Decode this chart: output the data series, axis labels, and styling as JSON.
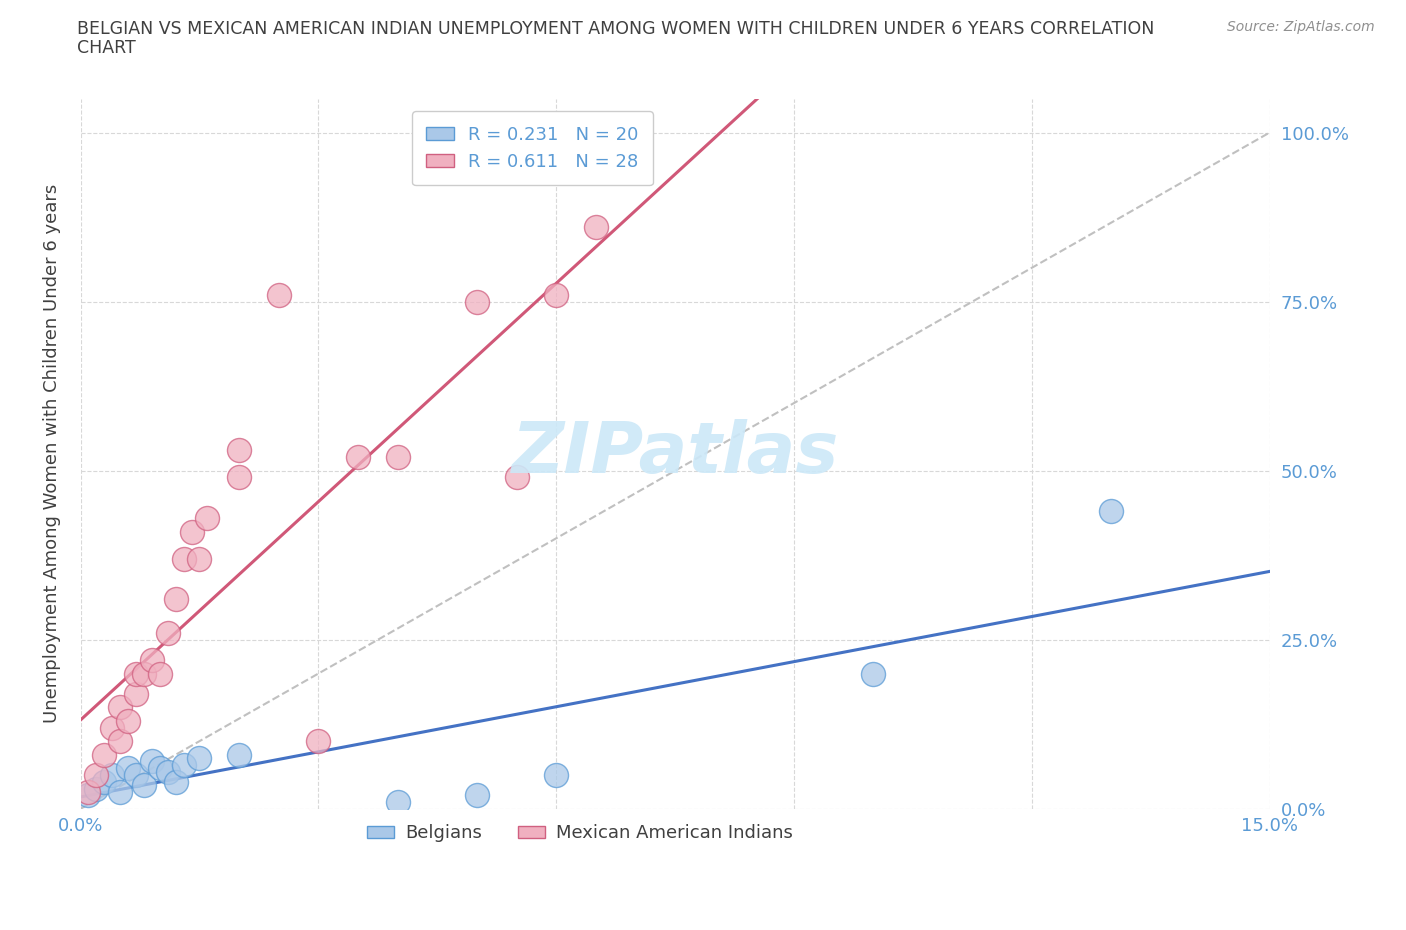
{
  "title_line1": "BELGIAN VS MEXICAN AMERICAN INDIAN UNEMPLOYMENT AMONG WOMEN WITH CHILDREN UNDER 6 YEARS CORRELATION",
  "title_line2": "CHART",
  "source": "Source: ZipAtlas.com",
  "ylabel": "Unemployment Among Women with Children Under 6 years",
  "xlim": [
    0.0,
    0.15
  ],
  "ylim": [
    0.0,
    1.05
  ],
  "belgian_face_color": "#aac8e8",
  "belgian_edge_color": "#5b9bd5",
  "mexican_face_color": "#f0b0c0",
  "mexican_edge_color": "#d06080",
  "belgian_line_color": "#4472c4",
  "mexican_line_color": "#d05878",
  "diagonal_color": "#c0c0c0",
  "watermark_color": "#cce8f8",
  "belgian_R": 0.231,
  "belgian_N": 20,
  "mexican_R": 0.611,
  "mexican_N": 28,
  "legend_belgian_label": "Belgians",
  "legend_mexican_label": "Mexican American Indians",
  "tick_color": "#5b9bd5",
  "label_color": "#404040",
  "grid_color": "#d8d8d8",
  "belgian_scatter_x": [
    0.001,
    0.002,
    0.003,
    0.004,
    0.005,
    0.006,
    0.007,
    0.008,
    0.009,
    0.01,
    0.011,
    0.012,
    0.013,
    0.015,
    0.02,
    0.04,
    0.05,
    0.06,
    0.1,
    0.13
  ],
  "belgian_scatter_y": [
    0.02,
    0.03,
    0.04,
    0.05,
    0.025,
    0.06,
    0.05,
    0.035,
    0.07,
    0.06,
    0.055,
    0.04,
    0.065,
    0.075,
    0.08,
    0.01,
    0.02,
    0.05,
    0.2,
    0.44
  ],
  "mexican_scatter_x": [
    0.001,
    0.002,
    0.003,
    0.004,
    0.005,
    0.005,
    0.006,
    0.007,
    0.007,
    0.008,
    0.009,
    0.01,
    0.011,
    0.012,
    0.013,
    0.014,
    0.015,
    0.016,
    0.02,
    0.02,
    0.025,
    0.03,
    0.035,
    0.04,
    0.05,
    0.055,
    0.06,
    0.065
  ],
  "mexican_scatter_y": [
    0.025,
    0.05,
    0.08,
    0.12,
    0.1,
    0.15,
    0.13,
    0.17,
    0.2,
    0.2,
    0.22,
    0.2,
    0.26,
    0.31,
    0.37,
    0.41,
    0.37,
    0.43,
    0.49,
    0.53,
    0.76,
    0.1,
    0.52,
    0.52,
    0.75,
    0.49,
    0.76,
    0.86
  ]
}
